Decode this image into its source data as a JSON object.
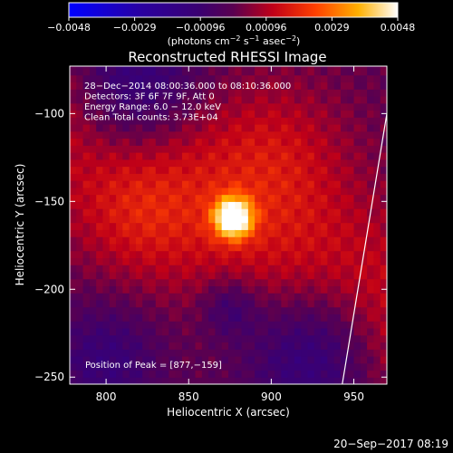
{
  "chart_data": {
    "type": "heatmap",
    "title": "Reconstructed RHESSI Image",
    "xlabel": "Heliocentric X (arcsec)",
    "ylabel": "Heliocentric Y (arcsec)",
    "xlim": [
      778,
      970
    ],
    "ylim": [
      -254,
      -73
    ],
    "x_ticks": [
      "800",
      "850",
      "900",
      "950"
    ],
    "y_ticks": [
      "−100",
      "−150",
      "−200",
      "−250"
    ],
    "colorbar": {
      "range": [
        -0.0048,
        0.0048
      ],
      "ticks": [
        "−0.0048",
        "−0.0029",
        "−0.00096",
        "0.00096",
        "0.0029",
        "0.0048"
      ],
      "label_main": "(photons cm",
      "label_exp1": "−2",
      "label_mid1": " s",
      "label_exp2": "−1",
      "label_mid2": " asec",
      "label_exp3": "−2",
      "label_end": ")",
      "colormap": "blue-purple-red-yellow-white"
    },
    "annotations": [
      "28−Dec−2014 08:00:36.000 to 08:10:36.000",
      "Detectors: 3F 6F 7F 9F, Att 0",
      "Energy Range: 6.0 − 12.0 keV",
      "Clean    Total counts: 3.73E+04"
    ],
    "peak_label": "Position of Peak = [877,−159]",
    "peak": {
      "x": 877,
      "y": -159,
      "value": 0.0048
    },
    "limb": [
      [
        970,
        -100
      ],
      [
        943,
        -254
      ]
    ],
    "footer": "20−Sep−2017 08:19"
  }
}
